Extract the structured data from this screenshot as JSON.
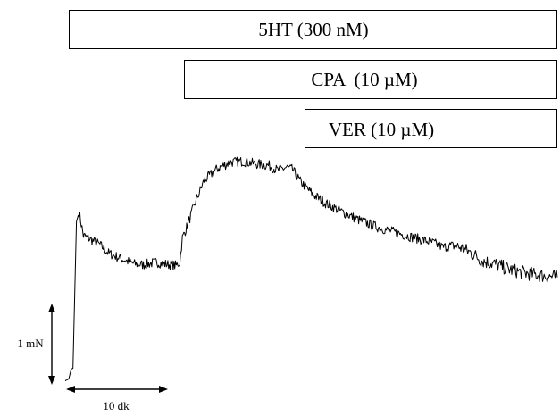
{
  "chart_data": {
    "type": "line",
    "title": "",
    "xlabel": "",
    "ylabel": "",
    "x_unit": "min",
    "y_unit": "mN",
    "xlim": [
      0,
      56.7
    ],
    "ylim": [
      0,
      3.03
    ],
    "grid": false,
    "legend": "none",
    "drug_applications": [
      {
        "label": "5HT (300 nM)",
        "start": 0
      },
      {
        "label": "CPA  (10 µM)",
        "start": 13
      },
      {
        "label": "VER (10 µM)",
        "start": 26
      }
    ],
    "scale_bars": {
      "y": {
        "label": "1 mN",
        "value": 1
      },
      "x": {
        "label": "10 dk",
        "value": 10
      }
    },
    "series": [
      {
        "points": [
          [
            0.0,
            0.07
          ],
          [
            0.4,
            0.09
          ],
          [
            0.7,
            0.21
          ],
          [
            0.9,
            0.22
          ],
          [
            1.3,
            1.98
          ],
          [
            1.6,
            2.09
          ],
          [
            2.1,
            1.81
          ],
          [
            3.0,
            1.76
          ],
          [
            4.0,
            1.7
          ],
          [
            5.0,
            1.6
          ],
          [
            6.5,
            1.53
          ],
          [
            8.0,
            1.47
          ],
          [
            9.0,
            1.46
          ],
          [
            10.5,
            1.49
          ],
          [
            12.0,
            1.46
          ],
          [
            12.8,
            1.45
          ],
          [
            13.2,
            1.49
          ],
          [
            13.5,
            1.78
          ],
          [
            14.0,
            1.91
          ],
          [
            15.0,
            2.21
          ],
          [
            16.0,
            2.47
          ],
          [
            17.5,
            2.61
          ],
          [
            19.0,
            2.69
          ],
          [
            20.5,
            2.7
          ],
          [
            22.0,
            2.67
          ],
          [
            23.5,
            2.65
          ],
          [
            24.5,
            2.59
          ],
          [
            25.5,
            2.63
          ],
          [
            26.2,
            2.6
          ],
          [
            27.0,
            2.47
          ],
          [
            28.5,
            2.31
          ],
          [
            30.0,
            2.2
          ],
          [
            32.0,
            2.09
          ],
          [
            34.0,
            1.99
          ],
          [
            36.0,
            1.91
          ],
          [
            38.0,
            1.85
          ],
          [
            40.0,
            1.79
          ],
          [
            41.5,
            1.75
          ],
          [
            42.5,
            1.72
          ],
          [
            43.5,
            1.67
          ],
          [
            44.5,
            1.69
          ],
          [
            45.5,
            1.67
          ],
          [
            47.0,
            1.59
          ],
          [
            48.0,
            1.51
          ],
          [
            49.5,
            1.47
          ],
          [
            51.0,
            1.41
          ],
          [
            53.0,
            1.36
          ],
          [
            55.0,
            1.33
          ],
          [
            56.7,
            1.31
          ]
        ]
      }
    ]
  }
}
